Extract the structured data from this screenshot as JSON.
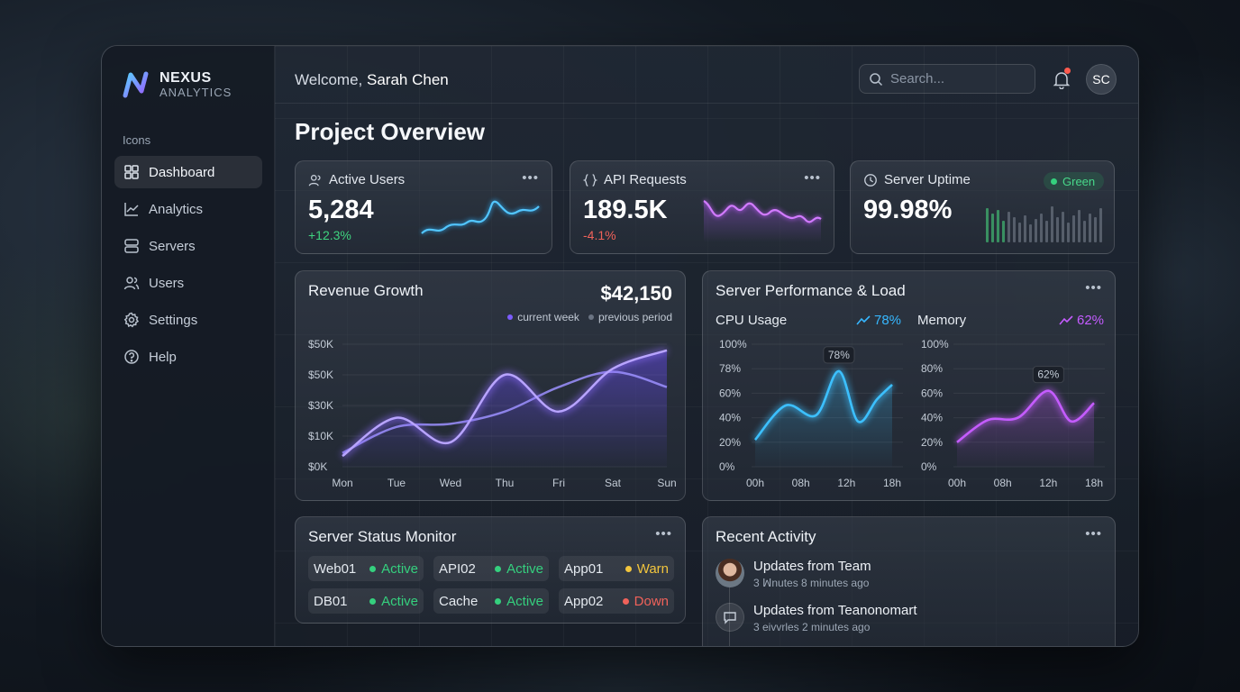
{
  "brand": {
    "name": "NEXUS",
    "subtitle": "ANALYTICS"
  },
  "sidebar": {
    "section_label": "Icons",
    "items": [
      {
        "label": "Dashboard",
        "icon": "grid-icon",
        "active": true
      },
      {
        "label": "Analytics",
        "icon": "chart-line-icon"
      },
      {
        "label": "Servers",
        "icon": "server-icon"
      },
      {
        "label": "Users",
        "icon": "users-icon"
      },
      {
        "label": "Settings",
        "icon": "gear-icon"
      },
      {
        "label": "Help",
        "icon": "help-icon"
      }
    ]
  },
  "header": {
    "welcome_prefix": "Welcome,",
    "user_name": "Sarah Chen",
    "search_placeholder": "Search...",
    "avatar_initials": "SC"
  },
  "page_title": "Project Overview",
  "kpis": [
    {
      "title": "Active Users",
      "value": "5,284",
      "delta": "+12.3%",
      "delta_color": "#3fd47f",
      "icon": "users-icon"
    },
    {
      "title": "API Requests",
      "value": "189.5K",
      "delta": "-4.1%",
      "delta_color": "#f0625a",
      "icon": "braces-icon"
    },
    {
      "title": "Server Uptime",
      "value": "99.98%",
      "badge": "Green",
      "icon": "clock-icon"
    }
  ],
  "revenue": {
    "title": "Revenue Growth",
    "total": "$42,150",
    "legend": [
      {
        "name": "current week",
        "color": "#7c5cff"
      },
      {
        "name": "previous period",
        "color": "#7d8594"
      }
    ]
  },
  "performance": {
    "title": "Server Performance & Load",
    "cpu": {
      "label": "CPU Usage",
      "value": "78%",
      "color": "#36b7ff"
    },
    "memory": {
      "label": "Memory",
      "value": "62%",
      "color": "#c45cff"
    }
  },
  "status_monitor": {
    "title": "Server Status Monitor",
    "servers": [
      {
        "name": "Web01",
        "status": "Active",
        "color": "#35d07e"
      },
      {
        "name": "API02",
        "status": "Active",
        "color": "#35d07e"
      },
      {
        "name": "App01",
        "status": "Warn",
        "color": "#f2c53d"
      },
      {
        "name": "DB01",
        "status": "Active",
        "color": "#35d07e"
      },
      {
        "name": "Cache",
        "status": "Active",
        "color": "#35d07e"
      },
      {
        "name": "App02",
        "status": "Down",
        "color": "#f0625a"
      }
    ]
  },
  "activity": {
    "title": "Recent Activity",
    "items": [
      {
        "title": "Updates from Team",
        "time": "3 ꟽnutes 8 minutes ago"
      },
      {
        "title": "Updates from Teanonomart",
        "time": "3 eivvrles 2 minutes ago"
      }
    ]
  },
  "chart_data": [
    {
      "type": "line",
      "title": "Revenue Growth",
      "categories": [
        "Mon",
        "Tue",
        "Wed",
        "Thu",
        "Fri",
        "Sat",
        "Sun"
      ],
      "y_ticks": [
        "$0K",
        "$10K",
        "$30K",
        "$50K",
        "$50K"
      ],
      "ylim": [
        0,
        4
      ],
      "series": [
        {
          "name": "current week",
          "values": [
            0.35,
            1.6,
            0.8,
            3.0,
            1.8,
            3.2,
            3.8
          ],
          "color": "#8a6cff"
        },
        {
          "name": "previous period",
          "values": [
            0.45,
            1.3,
            1.4,
            1.8,
            2.6,
            3.1,
            2.6
          ],
          "color": "#9c90ff"
        }
      ]
    },
    {
      "type": "area",
      "title": "CPU Usage",
      "x_ticks": [
        "00h",
        "08h",
        "12h",
        "18h"
      ],
      "y_ticks": [
        "0%",
        "20%",
        "40%",
        "60%",
        "78%",
        "100%"
      ],
      "ylim": [
        0,
        100
      ],
      "x": [
        0,
        4,
        8,
        11,
        13.5,
        16,
        18
      ],
      "values": [
        22,
        50,
        42,
        78,
        37,
        55,
        67
      ],
      "peak_label": "78%",
      "color": "#3cc0ff"
    },
    {
      "type": "area",
      "title": "Memory",
      "x_ticks": [
        "00h",
        "08h",
        "12h",
        "18h"
      ],
      "y_ticks": [
        "0%",
        "20%",
        "40%",
        "60%",
        "80%",
        "100%"
      ],
      "ylim": [
        0,
        100
      ],
      "x": [
        0,
        4,
        8,
        12,
        15,
        18
      ],
      "values": [
        20,
        38,
        40,
        62,
        37,
        52
      ],
      "peak_label": "62%",
      "color": "#c55cff"
    }
  ]
}
